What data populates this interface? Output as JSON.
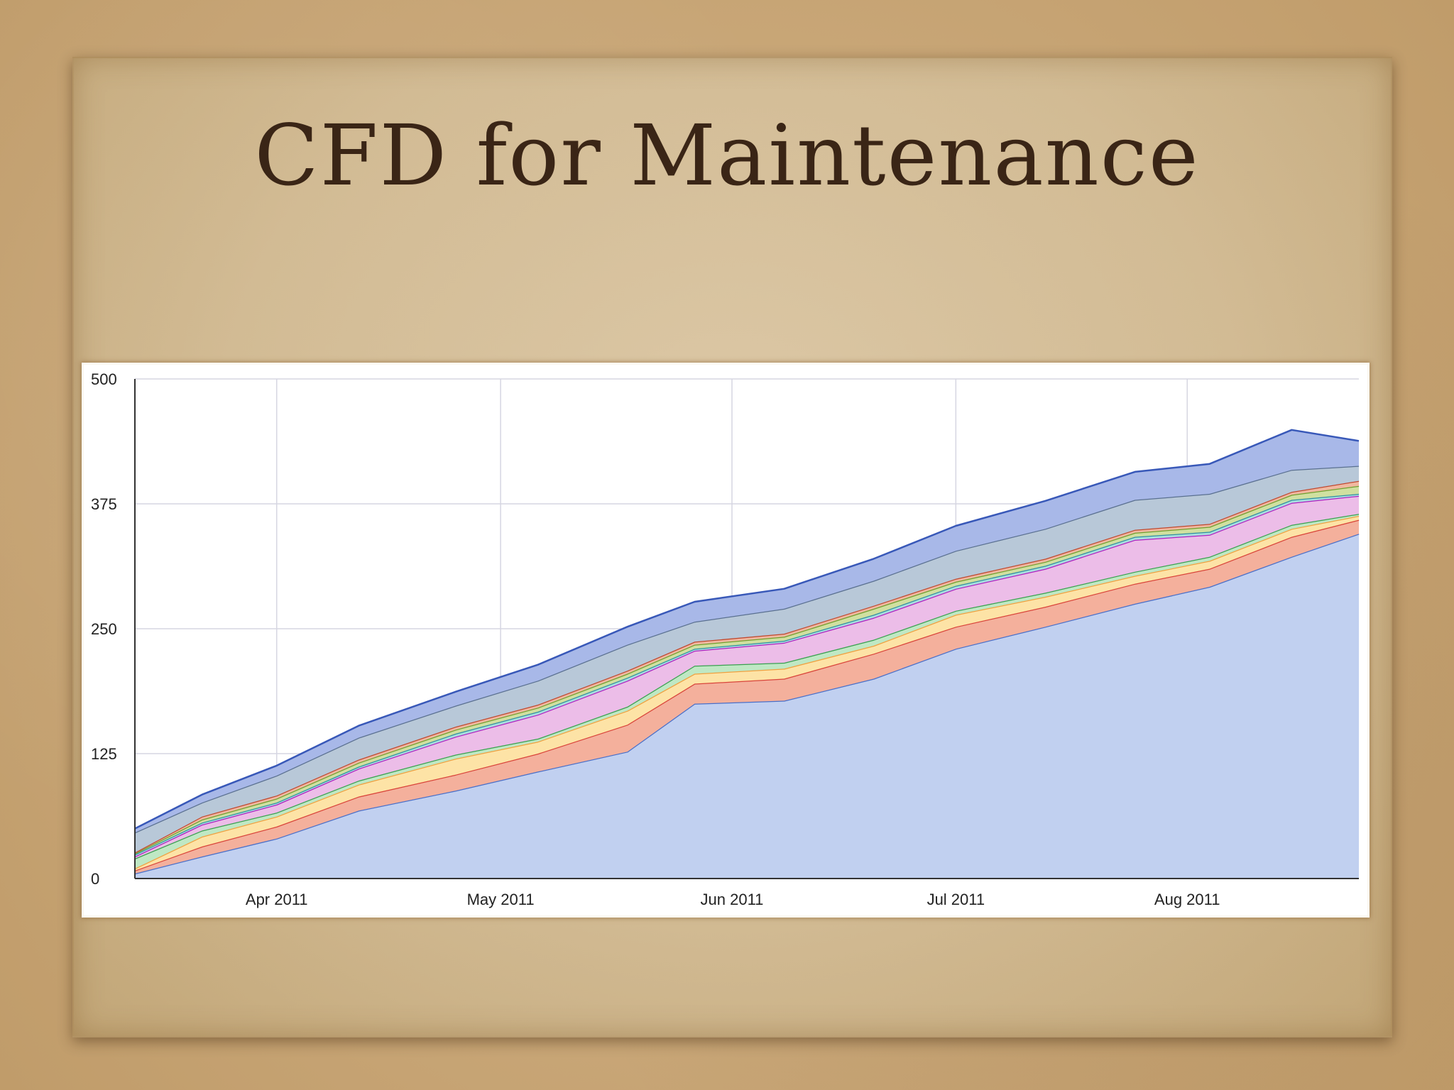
{
  "slide": {
    "title": "CFD for Maintenance"
  },
  "colors": {
    "background": "#c9a877",
    "paper": "#d6c19c",
    "title": "#3a2516"
  },
  "chart_data": {
    "type": "area",
    "stacked": true,
    "title": "",
    "xlabel": "",
    "ylabel": "",
    "ylim": [
      0,
      500
    ],
    "y_ticks": [
      "0",
      "125",
      "250",
      "375",
      "500"
    ],
    "y_tick_values": [
      0,
      125,
      250,
      375,
      500
    ],
    "x_range": [
      "2011-03-13",
      "2011-08-24"
    ],
    "x_ticks": [
      {
        "date": "2011-04-01",
        "label": "Apr 2011"
      },
      {
        "date": "2011-05-01",
        "label": "May 2011"
      },
      {
        "date": "2011-06-01",
        "label": "Jun 2011"
      },
      {
        "date": "2011-07-01",
        "label": "Jul 2011"
      },
      {
        "date": "2011-08-01",
        "label": "Aug 2011"
      }
    ],
    "grid": true,
    "legend": "none",
    "x": [
      "2011-03-13",
      "2011-03-22",
      "2011-04-01",
      "2011-04-12",
      "2011-04-25",
      "2011-05-06",
      "2011-05-18",
      "2011-05-27",
      "2011-06-08",
      "2011-06-20",
      "2011-07-01",
      "2011-07-13",
      "2011-07-25",
      "2011-08-04",
      "2011-08-15",
      "2011-08-24"
    ],
    "series": [
      {
        "color": "#c1d0f0",
        "stroke": "#4a6fc8",
        "values": [
          5,
          22,
          40,
          68,
          88,
          107,
          127,
          175,
          178,
          200,
          230,
          252,
          275,
          292,
          322,
          345
        ]
      },
      {
        "color": "#f4b09c",
        "stroke": "#d9453a",
        "values": [
          3,
          10,
          12,
          14,
          16,
          18,
          27,
          20,
          22,
          25,
          22,
          20,
          20,
          18,
          20,
          14
        ]
      },
      {
        "color": "#fde3a6",
        "stroke": "#f0a040",
        "values": [
          2,
          10,
          10,
          12,
          16,
          12,
          14,
          10,
          10,
          8,
          12,
          10,
          8,
          8,
          8,
          4
        ]
      },
      {
        "color": "#bfe8c4",
        "stroke": "#3aa050",
        "values": [
          10,
          6,
          4,
          4,
          4,
          3,
          4,
          8,
          6,
          6,
          4,
          4,
          4,
          4,
          4,
          2
        ]
      },
      {
        "color": "#ecbde8",
        "stroke": "#b020c0",
        "values": [
          2,
          6,
          8,
          12,
          18,
          24,
          26,
          15,
          20,
          22,
          22,
          24,
          32,
          22,
          22,
          18
        ]
      },
      {
        "color": "#a8dfe0",
        "stroke": "#3090a0",
        "values": [
          2,
          2,
          2,
          2,
          3,
          3,
          3,
          2,
          2,
          3,
          3,
          3,
          3,
          3,
          3,
          2
        ]
      },
      {
        "color": "#d0e0a0",
        "stroke": "#70a030",
        "values": [
          1,
          3,
          4,
          4,
          4,
          4,
          4,
          4,
          4,
          6,
          4,
          4,
          4,
          5,
          5,
          8
        ]
      },
      {
        "color": "#f0b8a0",
        "stroke": "#c04830",
        "values": [
          1,
          3,
          3,
          3,
          3,
          3,
          3,
          3,
          3,
          3,
          3,
          3,
          3,
          3,
          3,
          5
        ]
      },
      {
        "color": "#b8c8d8",
        "stroke": "#5a7090",
        "values": [
          20,
          14,
          20,
          22,
          21,
          24,
          26,
          20,
          25,
          25,
          28,
          30,
          30,
          30,
          22,
          15
        ]
      },
      {
        "color": "#a8b8e8",
        "stroke": "#3858b8",
        "values": [
          4,
          8,
          10,
          12,
          14,
          16,
          18,
          20,
          20,
          22,
          25,
          28,
          28,
          30,
          40,
          25
        ]
      }
    ]
  }
}
